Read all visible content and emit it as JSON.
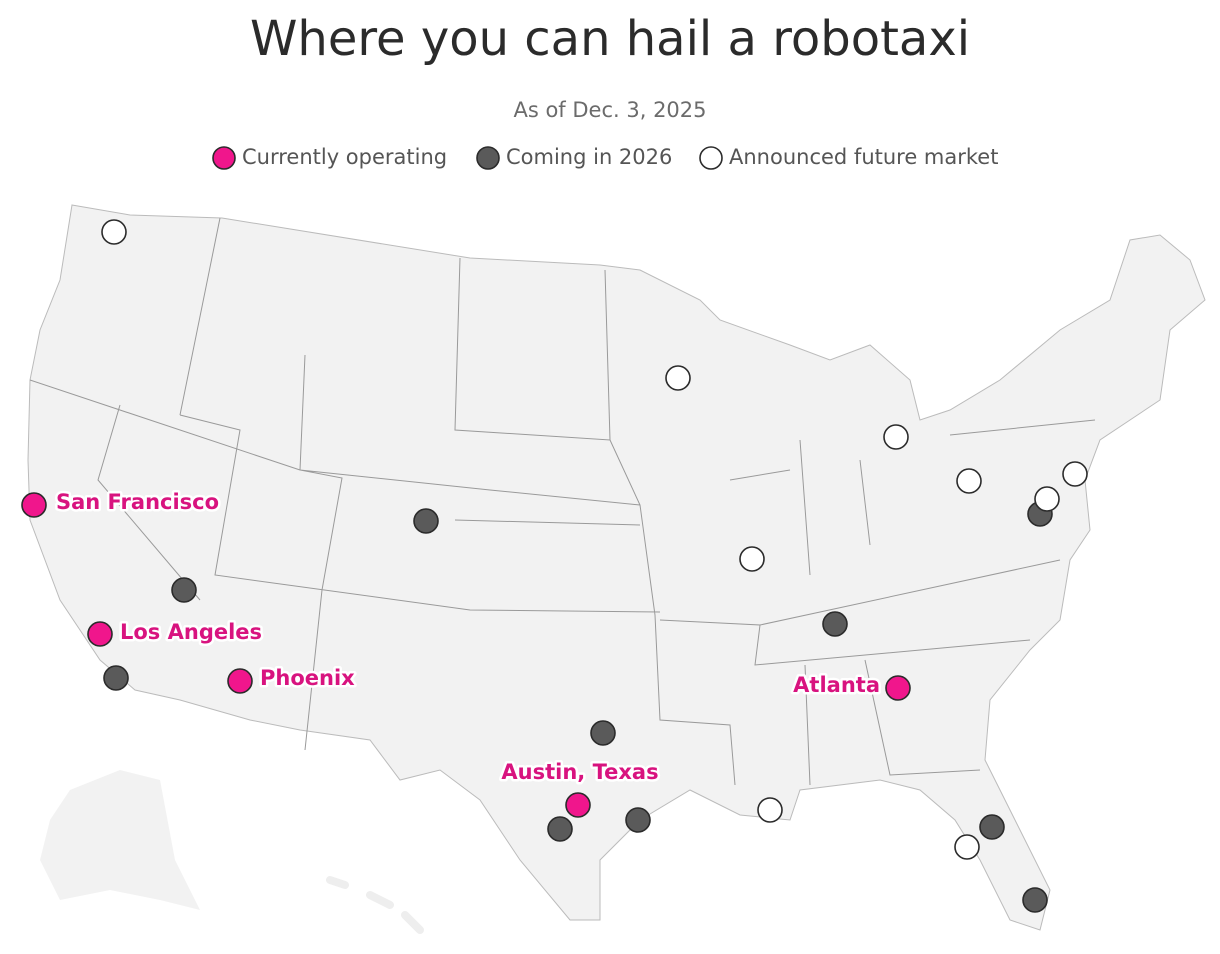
{
  "title": "Where you can hail a robotaxi",
  "subtitle": "As of Dec. 3, 2025",
  "legend": [
    {
      "label": "Currently operating",
      "color": "#f0168c"
    },
    {
      "label": "Coming in 2026",
      "color": "#5a5a5a"
    },
    {
      "label": "Announced future market",
      "color": "#ffffff"
    }
  ],
  "city_labels": [
    "San Francisco",
    "Los Angeles",
    "Phoenix",
    "Austin, Texas",
    "Atlanta"
  ]
}
